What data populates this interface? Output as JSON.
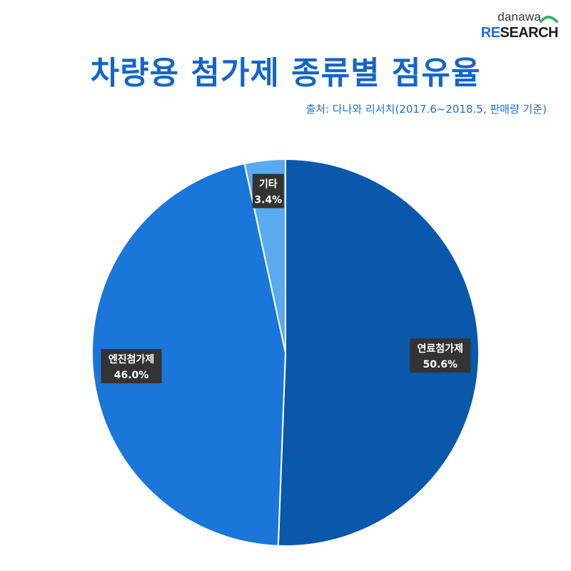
{
  "logo": {
    "top_text": "danawa",
    "re_text": "RE",
    "rest_text": "SEARCH"
  },
  "title": "차량용 첨가제 종류별 점유율",
  "source": "출처: 다나와 리서치(2017.6~2018.5, 판매량 기준)",
  "chart_data": {
    "type": "pie",
    "title": "차량용 첨가제 종류별 점유율",
    "slices": [
      {
        "label": "연료첨가제",
        "value": 50.6,
        "display": "50.6%",
        "color": "#0a58ab"
      },
      {
        "label": "엔진첨가제",
        "value": 46.0,
        "display": "46.0%",
        "color": "#1a76d8"
      },
      {
        "label": "기타",
        "value": 3.4,
        "display": "3.4%",
        "color": "#5aaaf0"
      }
    ],
    "start": "12 o'clock",
    "direction": "clockwise"
  }
}
